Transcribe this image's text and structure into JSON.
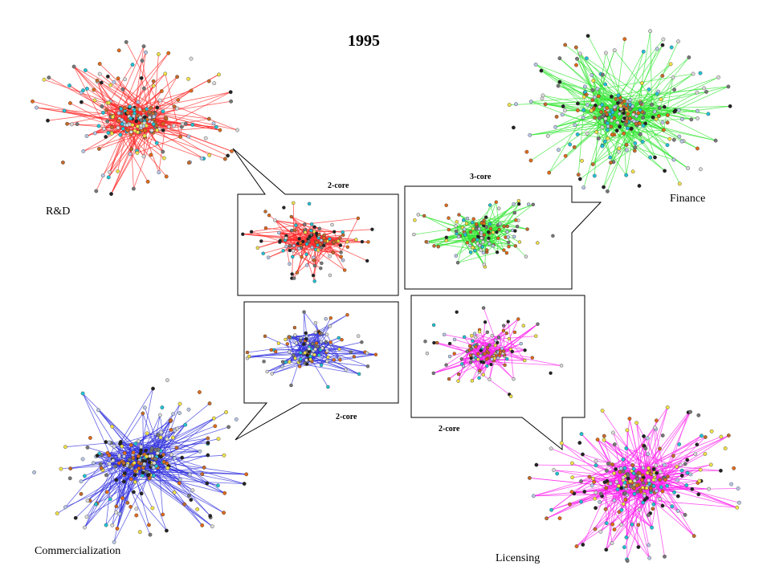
{
  "title": "1995",
  "clusters": [
    {
      "id": "rnd",
      "label": "R&D",
      "edge_color": "#ff2a2a",
      "core_label": "2-core"
    },
    {
      "id": "finance",
      "label": "Finance",
      "edge_color": "#33e633",
      "core_label": "3-core"
    },
    {
      "id": "commercialization",
      "label": "Commercialization",
      "edge_color": "#3333dd",
      "core_label": "2-core"
    },
    {
      "id": "licensing",
      "label": "Licensing",
      "edge_color": "#ff22ee",
      "core_label": "2-core"
    }
  ],
  "node_colors": [
    "#22c3d6",
    "#f2e24a",
    "#777777",
    "#c46a2a",
    "#b8c7e6",
    "#222222",
    "#e06a1a",
    "#d9d9d9"
  ]
}
